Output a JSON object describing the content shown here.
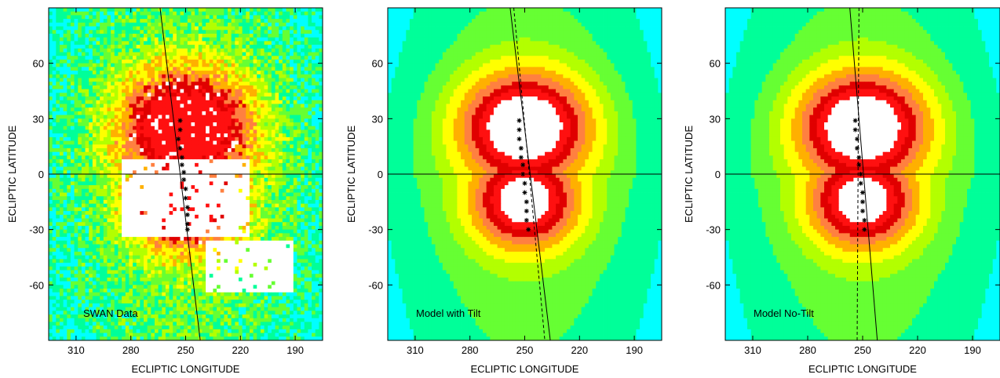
{
  "palette": {
    "levels": [
      "#00ffff",
      "#00ff99",
      "#66ff33",
      "#b3ff00",
      "#ffff00",
      "#ffb000",
      "#ff8040",
      "#e00000",
      "#ff1010",
      "#ffffff"
    ]
  },
  "chart_data": [
    {
      "type": "heatmap",
      "kind": "swan-data",
      "title": "",
      "annotation": "SWAN Data",
      "xlabel": "ECLIPTIC LONGITUDE",
      "ylabel": "ECLIPTIC LATITUDE",
      "xlim": [
        325,
        175
      ],
      "ylim": [
        -90,
        90
      ],
      "xticks": [
        310,
        280,
        250,
        220,
        190
      ],
      "yticks": [
        60,
        30,
        0,
        -30,
        -60
      ],
      "axis_line_lat": 0,
      "lines": [
        {
          "style": "solid",
          "points": [
            [
              264,
              90
            ],
            [
              242,
              -90
            ]
          ]
        }
      ],
      "track": [
        [
          253,
          29
        ],
        [
          253,
          24
        ],
        [
          254,
          19
        ],
        [
          253,
          14
        ],
        [
          252,
          9
        ],
        [
          252,
          5
        ],
        [
          251,
          1
        ],
        [
          251,
          -3
        ],
        [
          250,
          -8
        ],
        [
          250,
          -13
        ],
        [
          249,
          -18
        ],
        [
          249,
          -22
        ],
        [
          249,
          -27
        ],
        [
          249,
          -30
        ]
      ]
    },
    {
      "type": "heatmap",
      "kind": "model-tilt",
      "title": "",
      "annotation": "Model with Tilt",
      "xlabel": "ECLIPTIC LONGITUDE",
      "ylabel": "ECLIPTIC LATITUDE",
      "xlim": [
        325,
        175
      ],
      "ylim": [
        -90,
        90
      ],
      "xticks": [
        310,
        280,
        250,
        220,
        190
      ],
      "yticks": [
        60,
        30,
        0,
        -30,
        -60
      ],
      "axis_line_lat": 0,
      "lines": [
        {
          "style": "solid",
          "points": [
            [
              258,
              90
            ],
            [
              236,
              -90
            ]
          ]
        },
        {
          "style": "dashed",
          "points": [
            [
              256,
              90
            ],
            [
              239,
              -90
            ]
          ]
        }
      ],
      "track": [
        [
          253,
          29
        ],
        [
          253,
          24
        ],
        [
          253,
          19
        ],
        [
          252,
          14
        ],
        [
          252,
          9
        ],
        [
          251,
          5
        ],
        [
          251,
          0
        ],
        [
          250,
          -5
        ],
        [
          250,
          -10
        ],
        [
          249,
          -15
        ],
        [
          249,
          -20
        ],
        [
          249,
          -25
        ],
        [
          248,
          -30
        ]
      ]
    },
    {
      "type": "heatmap",
      "kind": "model-notilt",
      "title": "",
      "annotation": "Model No-Tilt",
      "xlabel": "ECLIPTIC LONGITUDE",
      "ylabel": "ECLIPTIC LATITUDE",
      "xlim": [
        325,
        175
      ],
      "ylim": [
        -90,
        90
      ],
      "xticks": [
        310,
        280,
        250,
        220,
        190
      ],
      "yticks": [
        60,
        30,
        0,
        -30,
        -60
      ],
      "axis_line_lat": 0,
      "lines": [
        {
          "style": "solid",
          "points": [
            [
              257,
              90
            ],
            [
              242,
              -90
            ]
          ]
        },
        {
          "style": "dashed",
          "points": [
            [
              252,
              90
            ],
            [
              253,
              -90
            ]
          ]
        }
      ],
      "track": [
        [
          254,
          29
        ],
        [
          254,
          24
        ],
        [
          253,
          19
        ],
        [
          253,
          14
        ],
        [
          252,
          9
        ],
        [
          252,
          5
        ],
        [
          251,
          0
        ],
        [
          251,
          -5
        ],
        [
          250,
          -10
        ],
        [
          250,
          -15
        ],
        [
          250,
          -20
        ],
        [
          249,
          -25
        ],
        [
          249,
          -30
        ]
      ]
    }
  ]
}
